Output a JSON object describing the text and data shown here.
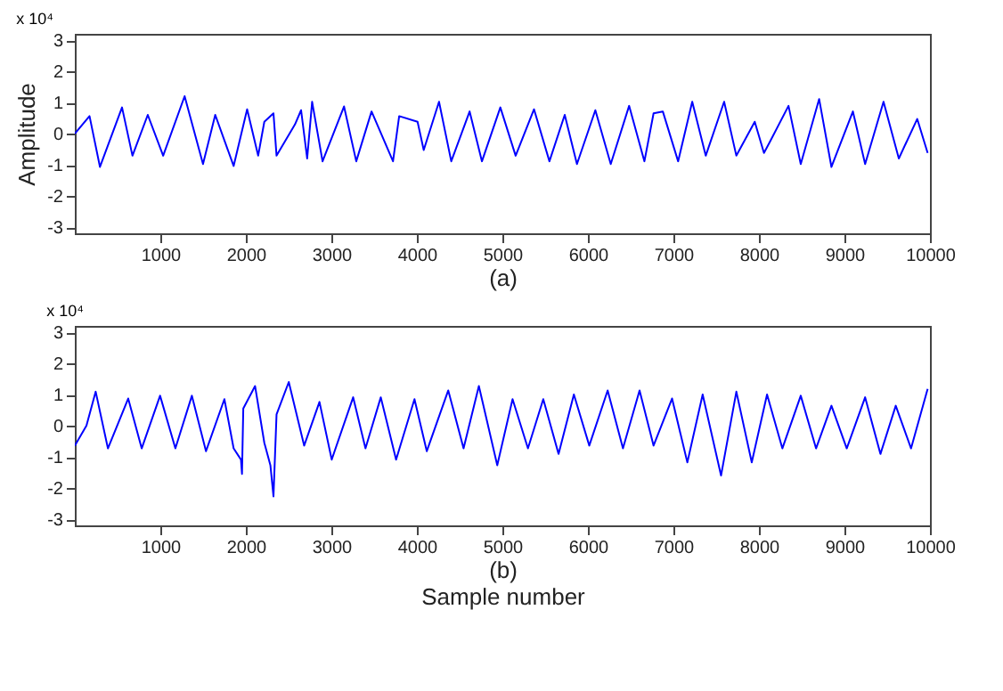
{
  "chart_data": [
    {
      "type": "line",
      "title": "x 10⁴",
      "ylabel": "Amplitude",
      "xlabel": "(a)",
      "color": "#0000ff",
      "grid": false,
      "x": [
        0,
        172,
        294,
        552,
        674,
        853,
        1033,
        1284,
        1499,
        1642,
        1857,
        2015,
        2144,
        2216,
        2323,
        2359,
        2574,
        2646,
        2717,
        2775,
        2897,
        3148,
        3291,
        3470,
        3721,
        3793,
        4008,
        4080,
        4259,
        4402,
        4617,
        4761,
        4976,
        5155,
        5370,
        5550,
        5729,
        5872,
        6087,
        6267,
        6482,
        6661,
        6768,
        6876,
        7055,
        7220,
        7378,
        7593,
        7736,
        7951,
        8059,
        8131,
        8346,
        8489,
        8704,
        8848,
        9099,
        9242,
        9457,
        9636,
        9851,
        9973
      ],
      "values": [
        0,
        0.56,
        -1.07,
        0.84,
        -0.71,
        0.6,
        -0.71,
        1.2,
        -0.98,
        0.6,
        -1.04,
        0.78,
        -0.71,
        0.38,
        0.65,
        -0.71,
        0.29,
        0.75,
        -0.8,
        1.02,
        -0.89,
        0.87,
        -0.89,
        0.71,
        -0.89,
        0.56,
        0.38,
        -0.53,
        1.02,
        -0.89,
        0.71,
        -0.89,
        0.84,
        -0.71,
        0.78,
        -0.89,
        0.6,
        -0.98,
        0.75,
        -0.98,
        0.89,
        -0.89,
        0.65,
        0.71,
        -0.89,
        1.02,
        -0.71,
        1.02,
        -0.71,
        0.38,
        -0.62,
        -0.25,
        0.89,
        -0.98,
        1.11,
        -1.07,
        0.71,
        -0.98,
        1.02,
        -0.8,
        0.47,
        -0.62
      ],
      "xlim": [
        0,
        10000
      ],
      "xticks": [
        1000,
        2000,
        3000,
        4000,
        5000,
        6000,
        7000,
        8000,
        9000,
        10000
      ],
      "ylim": [
        -3.2,
        3.2
      ],
      "yticks": [
        -3,
        -2,
        -1,
        0,
        1,
        2,
        3
      ]
    },
    {
      "type": "line",
      "title": "x 10⁴",
      "xlabel": "(b)",
      "annotations": [
        "Sample number"
      ],
      "color": "#0000ff",
      "grid": false,
      "x": [
        0,
        136,
        244,
        387,
        624,
        782,
        997,
        1176,
        1369,
        1534,
        1749,
        1857,
        1943,
        1955,
        1970,
        2108,
        2216,
        2287,
        2323,
        2359,
        2502,
        2682,
        2861,
        3004,
        3255,
        3399,
        3578,
        3757,
        3972,
        4116,
        4367,
        4546,
        4725,
        4940,
        5119,
        5299,
        5478,
        5657,
        5836,
        6016,
        6231,
        6410,
        6604,
        6768,
        6984,
        7163,
        7342,
        7557,
        7736,
        7916,
        8095,
        8274,
        8489,
        8668,
        8848,
        9027,
        9242,
        9421,
        9600,
        9779,
        9973
      ],
      "values": [
        -0.64,
        0,
        1.09,
        -0.73,
        0.87,
        -0.73,
        0.96,
        -0.73,
        0.96,
        -0.82,
        0.85,
        -0.73,
        -1.09,
        -1.55,
        0.55,
        1.27,
        -0.55,
        -1.27,
        -2.27,
        0.36,
        1.4,
        -0.64,
        0.76,
        -1.09,
        0.91,
        -0.73,
        0.91,
        -1.09,
        0.85,
        -0.82,
        1.13,
        -0.73,
        1.27,
        -1.27,
        0.85,
        -0.73,
        0.85,
        -0.91,
        1.0,
        -0.64,
        1.13,
        -0.73,
        1.13,
        -0.64,
        0.87,
        -1.18,
        1.0,
        -1.6,
        1.09,
        -1.18,
        1.0,
        -0.73,
        0.96,
        -0.73,
        0.64,
        -0.73,
        0.91,
        -0.91,
        0.64,
        -0.73,
        1.18
      ],
      "xlim": [
        0,
        10000
      ],
      "xticks": [
        1000,
        2000,
        3000,
        4000,
        5000,
        6000,
        7000,
        8000,
        9000,
        10000
      ],
      "ylim": [
        -3.2,
        3.2
      ],
      "yticks": [
        -3,
        -2,
        -1,
        0,
        1,
        2,
        3
      ]
    }
  ]
}
